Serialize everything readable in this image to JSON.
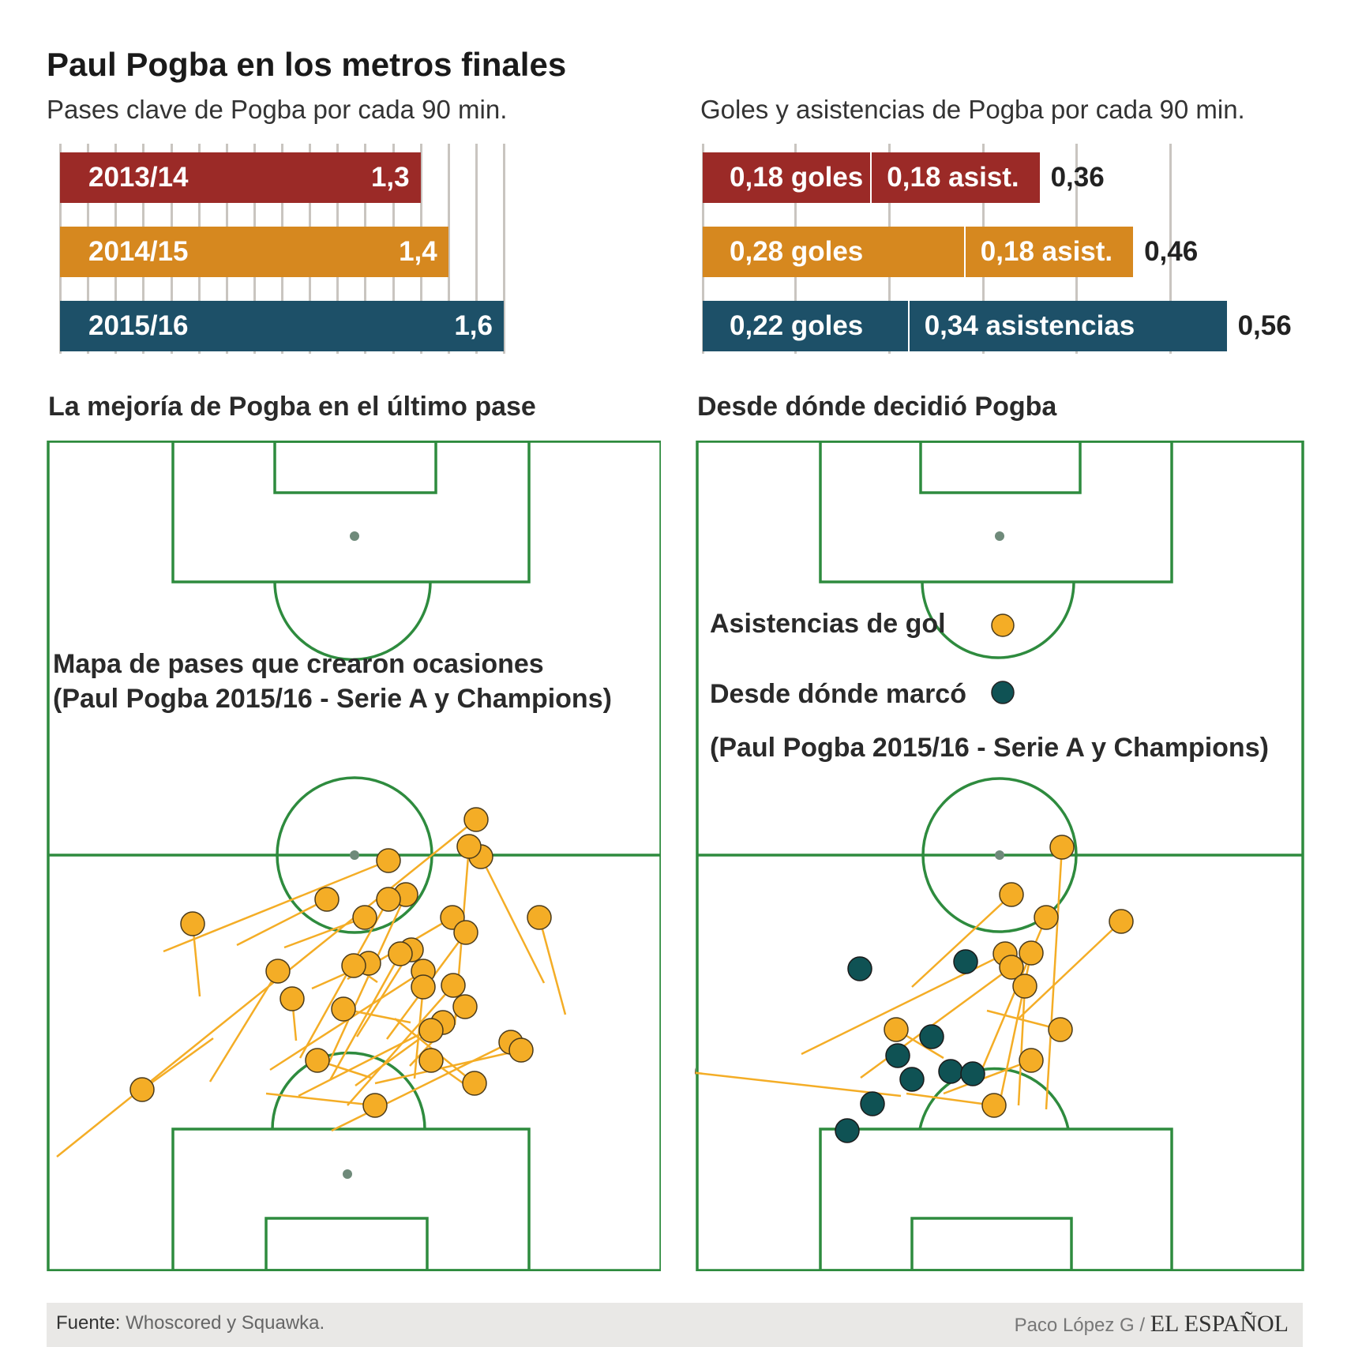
{
  "title": "Paul Pogba en los metros finales",
  "colors": {
    "season_2013": "#9b2a27",
    "season_2014": "#d6881f",
    "season_2015": "#1d5068",
    "pitch_line": "#2e8b3e",
    "assist_dot": "#f4ad26",
    "goal_dot": "#0f5254"
  },
  "chart_data": [
    {
      "type": "bar",
      "subtitle": "Pases clave de Pogba por cada 90 min.",
      "xlim": [
        0,
        1.6
      ],
      "grid": true,
      "categories": [
        "2013/14",
        "2014/15",
        "2015/16"
      ],
      "values": [
        1.3,
        1.4,
        1.6
      ],
      "value_labels": [
        "1,3",
        "1,4",
        "1,6"
      ]
    },
    {
      "type": "bar",
      "stacked": true,
      "subtitle": "Goles y asistencias de Pogba por cada 90 min.",
      "xlim": [
        0,
        0.6
      ],
      "grid": true,
      "categories": [
        "2013/14",
        "2014/15",
        "2015/16"
      ],
      "series": [
        {
          "values": [
            0.18,
            0.28,
            0.22
          ],
          "labels": [
            "0,18 goles",
            "0,28 goles",
            "0,22 goles"
          ]
        },
        {
          "values": [
            0.18,
            0.18,
            0.34
          ],
          "labels": [
            "0,18 asist.",
            "0,18 asist.",
            "0,34 asistencias"
          ]
        }
      ],
      "totals": [
        "0,36",
        "0,46",
        "0,56"
      ]
    },
    {
      "type": "scatter",
      "title": "La mejoría de Pogba en el último pase",
      "annotation": [
        "Mapa de pases que crearon ocasiones",
        "(Paul Pogba 2015/16 - Serie A y Champions)"
      ],
      "passes": [
        {
          "from": [
            603,
            1038
          ],
          "to": [
            72,
            1465
          ]
        },
        {
          "from": [
            492,
            1090
          ],
          "to": [
            207,
            1205
          ]
        },
        {
          "from": [
            414,
            1139
          ],
          "to": [
            300,
            1197
          ]
        },
        {
          "from": [
            244,
            1170
          ],
          "to": [
            253,
            1262
          ]
        },
        {
          "from": [
            180,
            1380
          ],
          "to": [
            270,
            1315
          ]
        },
        {
          "from": [
            683,
            1162
          ],
          "to": [
            716,
            1285
          ]
        },
        {
          "from": [
            609,
            1085
          ],
          "to": [
            689,
            1245
          ]
        },
        {
          "from": [
            594,
            1072
          ],
          "to": [
            576,
            1298
          ]
        },
        {
          "from": [
            514,
            1133
          ],
          "to": [
            417,
            1345
          ]
        },
        {
          "from": [
            492,
            1139
          ],
          "to": [
            380,
            1340
          ]
        },
        {
          "from": [
            462,
            1162
          ],
          "to": [
            360,
            1200
          ]
        },
        {
          "from": [
            573,
            1162
          ],
          "to": [
            440,
            1240
          ]
        },
        {
          "from": [
            590,
            1181
          ],
          "to": [
            490,
            1316
          ]
        },
        {
          "from": [
            521,
            1203
          ],
          "to": [
            452,
            1313
          ]
        },
        {
          "from": [
            507,
            1208
          ],
          "to": [
            418,
            1368
          ]
        },
        {
          "from": [
            467,
            1220
          ],
          "to": [
            395,
            1252
          ]
        },
        {
          "from": [
            448,
            1223
          ],
          "to": [
            478,
            1244
          ]
        },
        {
          "from": [
            536,
            1230
          ],
          "to": [
            342,
            1355
          ]
        },
        {
          "from": [
            536,
            1250
          ],
          "to": [
            525,
            1366
          ]
        },
        {
          "from": [
            352,
            1230
          ],
          "to": [
            266,
            1370
          ]
        },
        {
          "from": [
            370,
            1265
          ],
          "to": [
            375,
            1318
          ]
        },
        {
          "from": [
            574,
            1248
          ],
          "to": [
            440,
            1400
          ]
        },
        {
          "from": [
            435,
            1278
          ],
          "to": [
            520,
            1295
          ]
        },
        {
          "from": [
            589,
            1275
          ],
          "to": [
            519,
            1350
          ]
        },
        {
          "from": [
            561,
            1295
          ],
          "to": [
            378,
            1388
          ]
        },
        {
          "from": [
            546,
            1305
          ],
          "to": [
            450,
            1375
          ]
        },
        {
          "from": [
            647,
            1320
          ],
          "to": [
            420,
            1432
          ]
        },
        {
          "from": [
            660,
            1330
          ],
          "to": [
            475,
            1372
          ]
        },
        {
          "from": [
            402,
            1343
          ],
          "to": [
            470,
            1365
          ]
        },
        {
          "from": [
            546,
            1343
          ],
          "to": [
            605,
            1385
          ]
        },
        {
          "from": [
            601,
            1372
          ],
          "to": [
            500,
            1290
          ]
        },
        {
          "from": [
            475,
            1400
          ],
          "to": [
            337,
            1385
          ]
        }
      ]
    },
    {
      "type": "scatter",
      "title": "Desde dónde decidió Pogba",
      "legend": [
        {
          "label": "Asistencias de gol",
          "marker": "assist"
        },
        {
          "label": "Desde dónde marcó",
          "marker": "goal"
        }
      ],
      "note": "(Paul Pogba 2015/16 - Serie A y Champions)",
      "assists": [
        {
          "from": [
            1345,
            1073
          ],
          "to": [
            1325,
            1405
          ]
        },
        {
          "from": [
            1281,
            1133
          ],
          "to": [
            1155,
            1250
          ]
        },
        {
          "from": [
            1325,
            1162
          ],
          "to": [
            1235,
            1375
          ]
        },
        {
          "from": [
            1420,
            1167
          ],
          "to": [
            1290,
            1290
          ]
        },
        {
          "from": [
            1306,
            1207
          ],
          "to": [
            1265,
            1402
          ]
        },
        {
          "from": [
            1273,
            1208
          ],
          "to": [
            1015,
            1335
          ]
        },
        {
          "from": [
            1281,
            1225
          ],
          "to": [
            1090,
            1365
          ]
        },
        {
          "from": [
            1298,
            1249
          ],
          "to": [
            1290,
            1400
          ]
        },
        {
          "from": [
            1135,
            1304
          ],
          "to": [
            1195,
            1340
          ]
        },
        {
          "from": [
            1343,
            1304
          ],
          "to": [
            1250,
            1280
          ]
        },
        {
          "from": [
            1306,
            1343
          ],
          "to": [
            1195,
            1385
          ]
        },
        {
          "from": [
            865,
            1357
          ],
          "to": [
            1141,
            1388
          ]
        },
        {
          "from": [
            1259,
            1400
          ],
          "to": [
            1148,
            1385
          ]
        }
      ],
      "goals": [
        [
          1089,
          1227
        ],
        [
          1223,
          1218
        ],
        [
          1180,
          1313
        ],
        [
          1137,
          1337
        ],
        [
          1155,
          1367
        ],
        [
          1204,
          1357
        ],
        [
          1232,
          1360
        ],
        [
          1105,
          1398
        ],
        [
          1073,
          1432
        ]
      ]
    }
  ],
  "footer": {
    "source_label": "Fuente:",
    "source_text": "Whoscored y Squawka.",
    "author": "Paco López G /",
    "brand": "EL ESPAÑOL"
  }
}
